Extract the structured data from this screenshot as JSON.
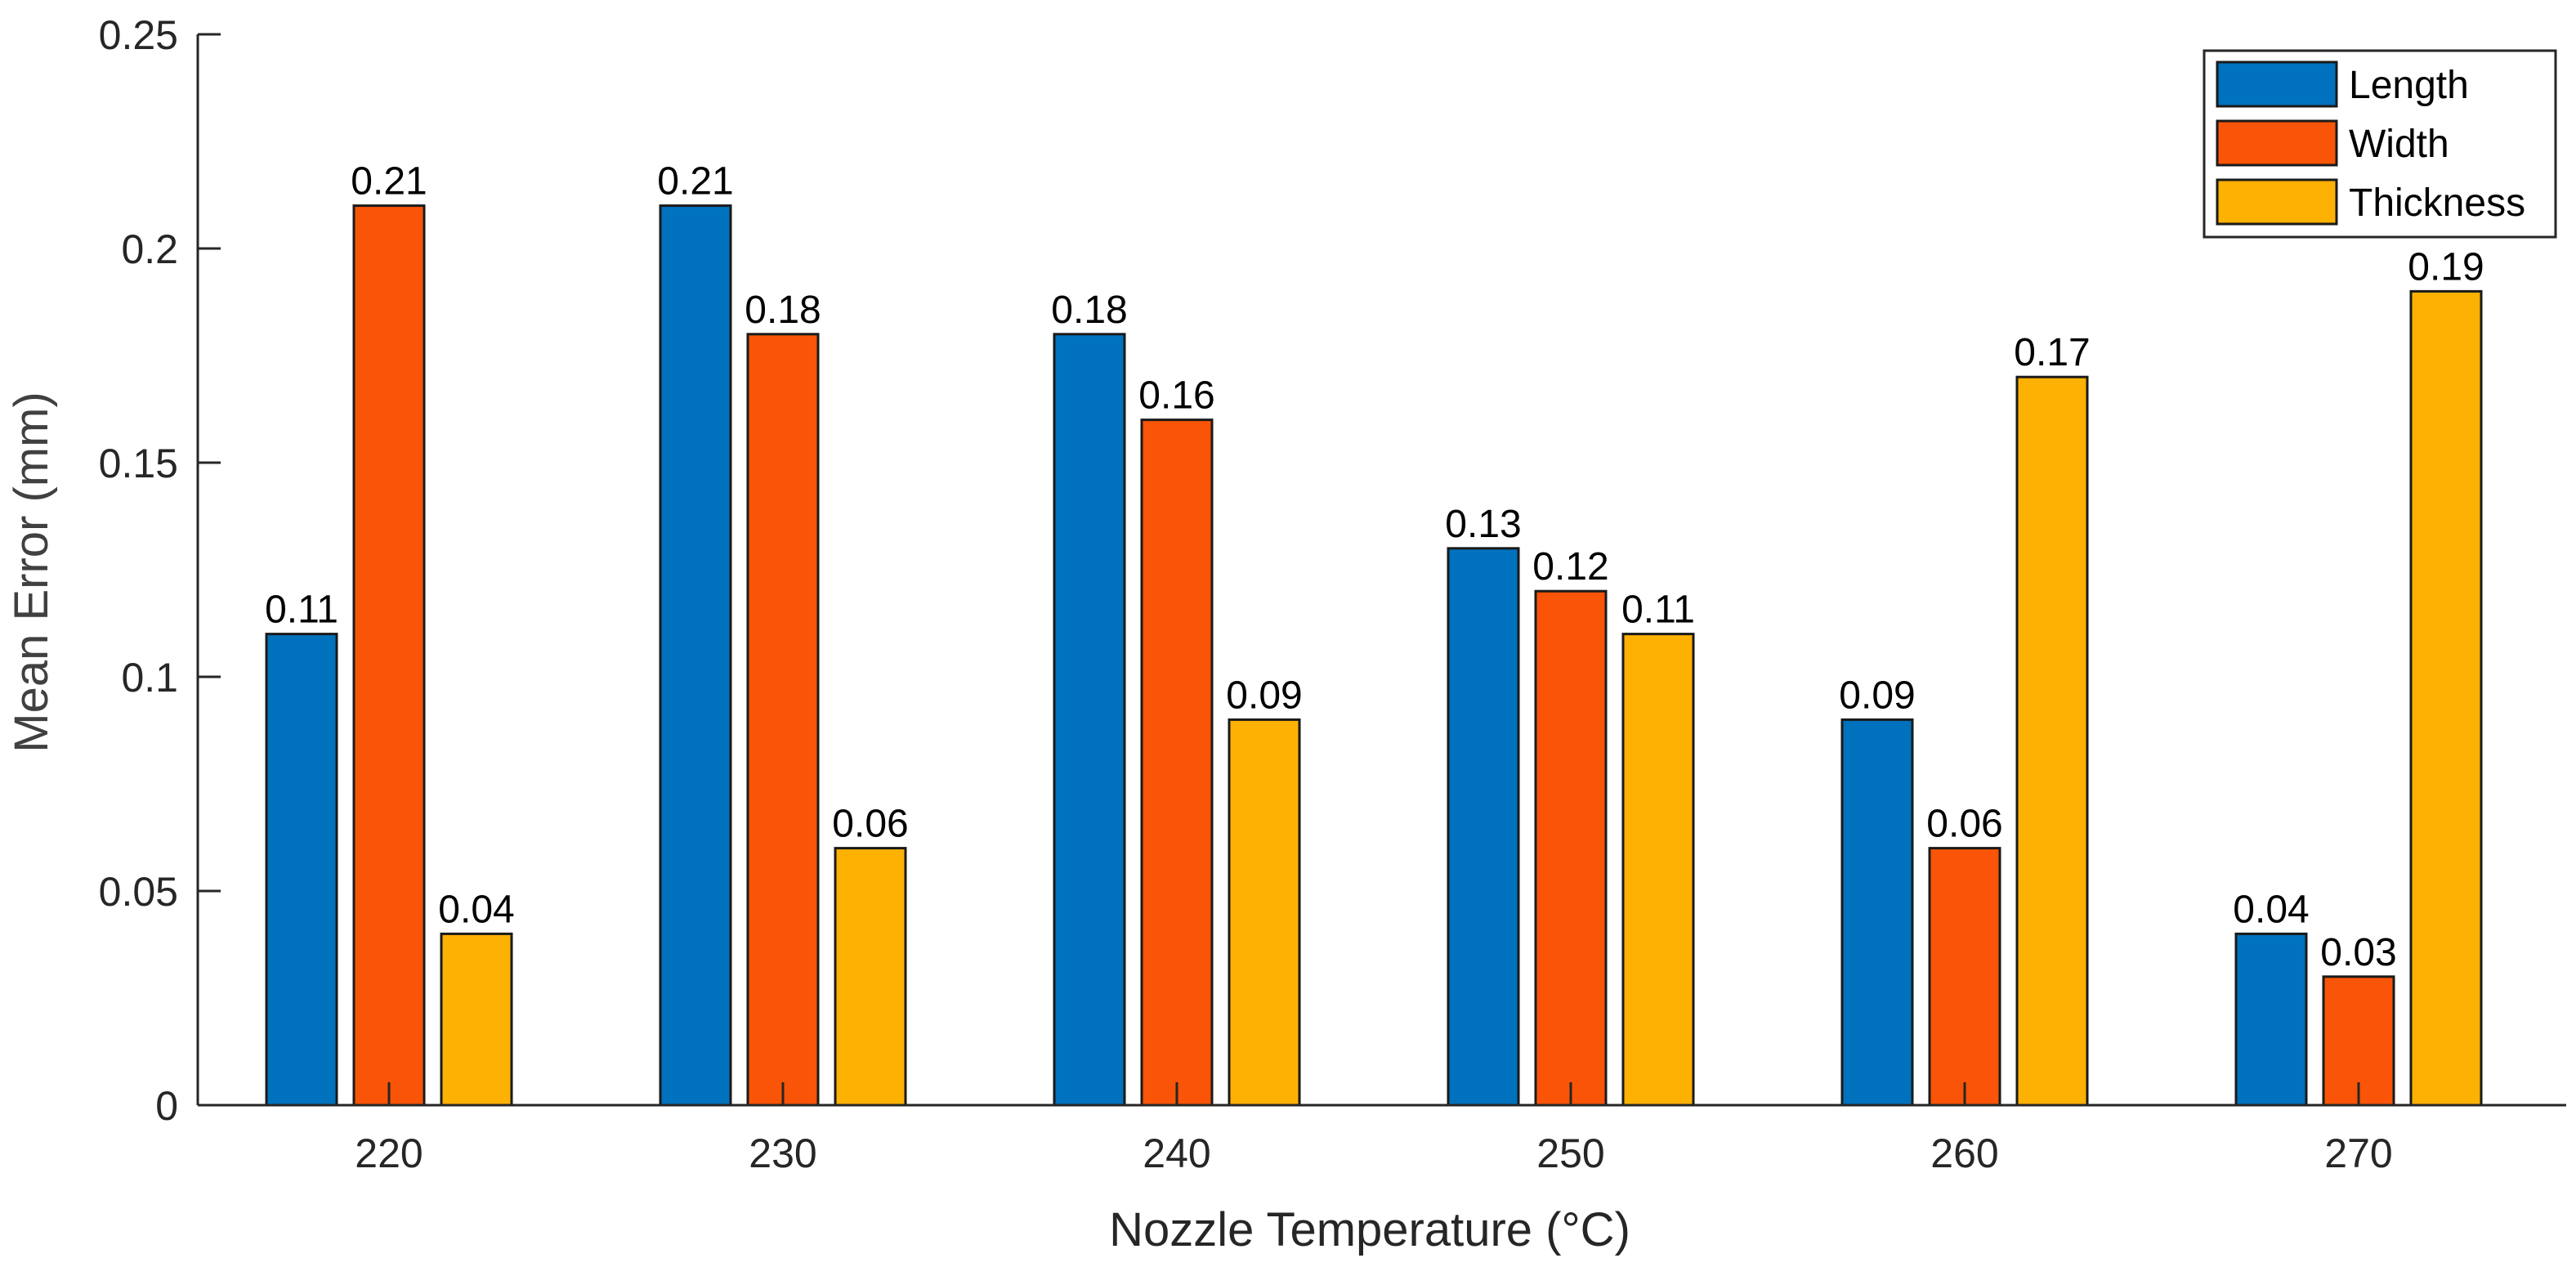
{
  "chart_data": {
    "type": "bar",
    "title": "",
    "xlabel": "Nozzle Temperature (°C)",
    "ylabel": "Mean Error (mm)",
    "categories": [
      "220",
      "230",
      "240",
      "250",
      "260",
      "270"
    ],
    "series": [
      {
        "name": "Length",
        "color": "#0072BD",
        "values": [
          0.11,
          0.21,
          0.18,
          0.13,
          0.09,
          0.04
        ],
        "labels": [
          "0.11",
          "0.21",
          "0.18",
          "0.13",
          "0.09",
          "0.04"
        ]
      },
      {
        "name": "Width",
        "color": "#F95407",
        "values": [
          0.21,
          0.18,
          0.16,
          0.12,
          0.06,
          0.03
        ],
        "labels": [
          "0.21",
          "0.18",
          "0.16",
          "0.12",
          "0.06",
          "0.03"
        ]
      },
      {
        "name": "Thickness",
        "color": "#FDB103",
        "values": [
          0.04,
          0.06,
          0.09,
          0.11,
          0.17,
          0.19
        ],
        "labels": [
          "0.04",
          "0.06",
          "0.09",
          "0.11",
          "0.17",
          "0.19"
        ]
      }
    ],
    "ylim": [
      0,
      0.25
    ],
    "yticks": [
      0,
      0.05,
      0.1,
      0.15,
      0.2,
      0.25
    ],
    "ytick_labels": [
      "0",
      "0.05",
      "0.1",
      "0.15",
      "0.2",
      "0.25"
    ],
    "legend_position": "top-right",
    "grid": false
  }
}
